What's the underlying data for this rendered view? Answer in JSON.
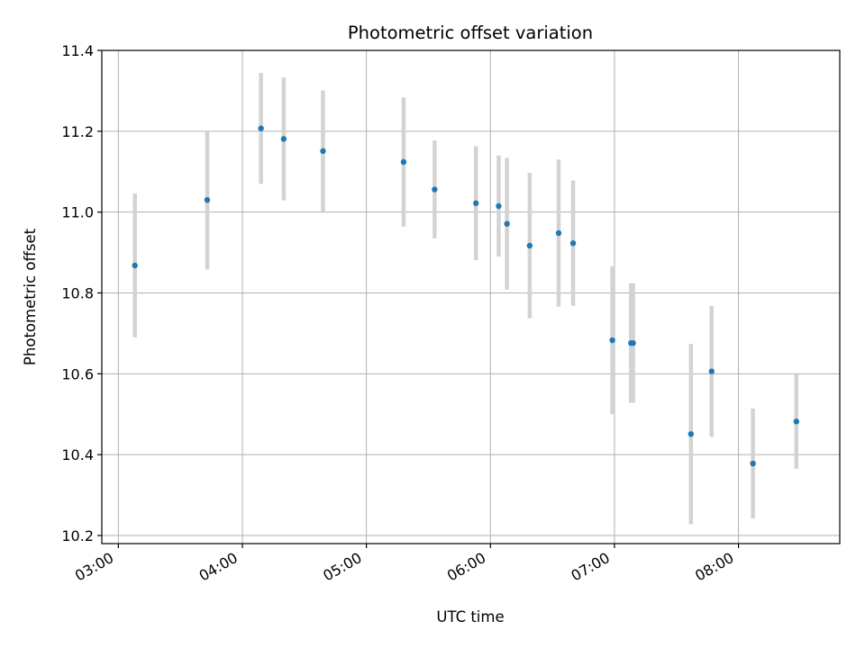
{
  "chart_data": {
    "type": "scatter",
    "title": "Photometric offset variation",
    "xlabel": "UTC time",
    "ylabel": "Photometric offset",
    "grid": true,
    "legend": "none",
    "xlim": [
      "02:52",
      "08:49"
    ],
    "ylim": [
      10.18,
      11.4
    ],
    "x_ticks": [
      "03:00",
      "04:00",
      "05:00",
      "06:00",
      "07:00",
      "08:00"
    ],
    "y_ticks": [
      "10.2",
      "10.4",
      "10.6",
      "10.8",
      "11.0",
      "11.2",
      "11.4"
    ],
    "colors": {
      "points": "#1f77b4",
      "errorbars": "#d3d3d3",
      "grid": "#b0b0b0"
    },
    "series": [
      {
        "points": [
          {
            "x": "03:08",
            "y": 10.868,
            "err": 0.178
          },
          {
            "x": "03:43",
            "y": 11.03,
            "err": 0.172
          },
          {
            "x": "04:09",
            "y": 11.207,
            "err": 0.137
          },
          {
            "x": "04:20",
            "y": 11.181,
            "err": 0.152
          },
          {
            "x": "04:39",
            "y": 11.151,
            "err": 0.15
          },
          {
            "x": "05:18",
            "y": 11.124,
            "err": 0.16
          },
          {
            "x": "05:33",
            "y": 11.056,
            "err": 0.121
          },
          {
            "x": "05:53",
            "y": 11.022,
            "err": 0.141
          },
          {
            "x": "06:04",
            "y": 11.015,
            "err": 0.125
          },
          {
            "x": "06:08",
            "y": 10.971,
            "err": 0.163
          },
          {
            "x": "06:19",
            "y": 10.917,
            "err": 0.18
          },
          {
            "x": "06:33",
            "y": 10.948,
            "err": 0.182
          },
          {
            "x": "06:40",
            "y": 10.923,
            "err": 0.155
          },
          {
            "x": "06:59",
            "y": 10.683,
            "err": 0.183
          },
          {
            "x": "07:08",
            "y": 10.676,
            "err": 0.148
          },
          {
            "x": "07:09",
            "y": 10.676,
            "err": 0.148
          },
          {
            "x": "07:37",
            "y": 10.451,
            "err": 0.223
          },
          {
            "x": "07:47",
            "y": 10.606,
            "err": 0.162
          },
          {
            "x": "08:07",
            "y": 10.378,
            "err": 0.136
          },
          {
            "x": "08:28",
            "y": 10.482,
            "err": 0.117
          }
        ]
      }
    ]
  }
}
